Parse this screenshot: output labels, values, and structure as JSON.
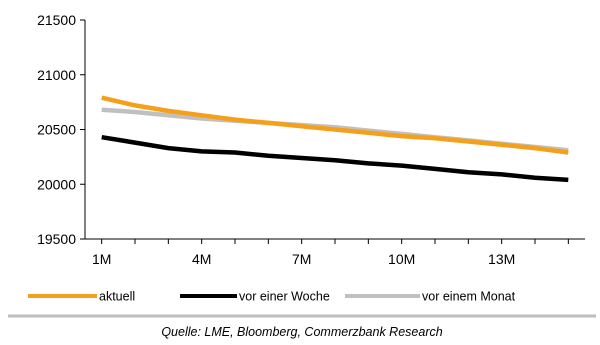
{
  "chart_data": {
    "type": "line",
    "x": [
      1,
      2,
      3,
      4,
      5,
      6,
      7,
      8,
      9,
      10,
      11,
      12,
      13,
      14,
      15
    ],
    "x_tick_labels": [
      {
        "x": 1,
        "label": "1M"
      },
      {
        "x": 4,
        "label": "4M"
      },
      {
        "x": 7,
        "label": "7M"
      },
      {
        "x": 10,
        "label": "10M"
      },
      {
        "x": 13,
        "label": "13M"
      }
    ],
    "xlim": [
      0.5,
      15.5
    ],
    "ylim": [
      19500,
      21500
    ],
    "y_ticks": [
      19500,
      20000,
      20500,
      21000,
      21500
    ],
    "series": [
      {
        "name": "aktuell",
        "color": "#f5a01a",
        "values": [
          20790,
          20720,
          20670,
          20630,
          20590,
          20560,
          20530,
          20500,
          20470,
          20440,
          20420,
          20390,
          20360,
          20330,
          20290
        ]
      },
      {
        "name": "vor einer Woche",
        "color": "#000000",
        "values": [
          20430,
          20380,
          20330,
          20300,
          20290,
          20260,
          20240,
          20220,
          20190,
          20170,
          20140,
          20110,
          20090,
          20060,
          20040
        ]
      },
      {
        "name": "vor einem Monat",
        "color": "#c0c0c0",
        "values": [
          20680,
          20660,
          20630,
          20600,
          20580,
          20560,
          20540,
          20520,
          20490,
          20460,
          20430,
          20400,
          20370,
          20340,
          20310
        ]
      }
    ],
    "grid": false,
    "legend_position": "bottom",
    "source": "Quelle: LME, Bloomberg, Commerzbank Research"
  }
}
